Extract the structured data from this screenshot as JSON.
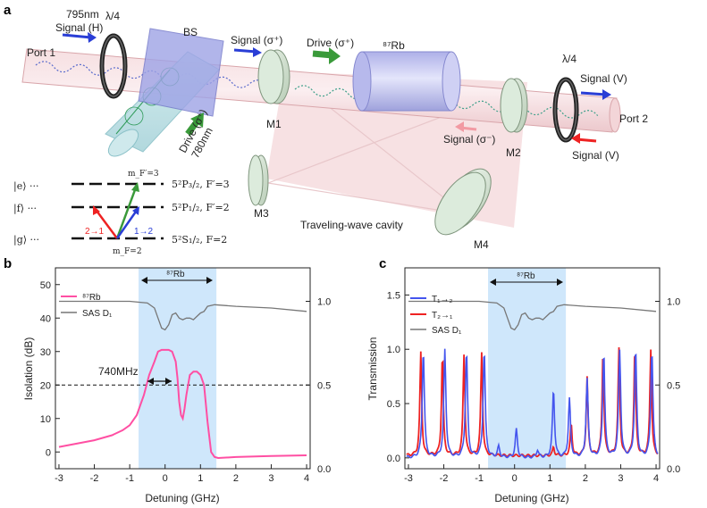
{
  "panel_a": {
    "label": "a",
    "wavelength_795": "795nm",
    "signal_h": "Signal (H)",
    "qwp_left": "λ/4",
    "qwp_right": "λ/4",
    "port1": "Port 1",
    "port2": "Port 2",
    "bs": "BS",
    "signal_sigma_plus": "Signal (σ⁺)",
    "drive_sigma_plus": "Drive (σ⁺)",
    "rb87": "⁸⁷Rb",
    "signal_v_top": "Signal (V)",
    "signal_v_bottom": "Signal (V)",
    "signal_sigma_minus": "Signal (σ⁻)",
    "drive_780_line1": "Drive (σ⁺)",
    "drive_780_line2": "780nm",
    "m1": "M1",
    "m2": "M2",
    "m3": "M3",
    "m4": "M4",
    "cavity": "Traveling-wave cavity",
    "level_e": "|e⟩ ···",
    "level_f": "|f⟩ ···",
    "level_g": "|g⟩ ···",
    "term_e": "5²P₃/₂, F′=3",
    "term_f": "5²P₁/₂, F′=2",
    "term_g": "5²S₁/₂, F=2",
    "mF_prime": "m_F′=3",
    "mF": "m_F=2",
    "trans_21": "2→1",
    "trans_12": "1→2",
    "colors": {
      "drive": "#3a9a3a",
      "signal": "#3344dd",
      "red": "#ee2222",
      "beam": "#e8b6bb",
      "cell": "#c3c3ee"
    }
  },
  "panel_b": {
    "label": "b",
    "ylabel": "Isolation (dB)",
    "xlabel": "Detuning (GHz)",
    "legend_rb": "⁸⁷Rb",
    "legend_sas": "SAS D₁",
    "rb_region_label": "⁸⁷Rb",
    "annotation": "740MHz",
    "x_ticks": [
      "-3",
      "-2",
      "-1",
      "0",
      "1",
      "2",
      "3",
      "4"
    ],
    "y_ticks_left": [
      "0",
      "10",
      "20",
      "30",
      "40",
      "50"
    ],
    "y_ticks_right": [
      "0.0",
      "0.5",
      "1.0"
    ]
  },
  "panel_c": {
    "label": "c",
    "ylabel": "Transmission",
    "xlabel": "Detuning (GHz)",
    "legend_t12": "T₁→₂",
    "legend_t21": "T₂→₁",
    "legend_sas": "SAS D₁",
    "rb_region_label": "⁸⁷Rb",
    "x_ticks": [
      "-3",
      "-2",
      "-1",
      "0",
      "1",
      "2",
      "3",
      "4"
    ],
    "y_ticks_left": [
      "0.0",
      "0.5",
      "1.0",
      "1.5"
    ],
    "y_ticks_right": [
      "0.0",
      "0.5",
      "1.0"
    ]
  },
  "chart_data": [
    {
      "type": "line",
      "panel": "b",
      "xlim": [
        -3.1,
        4.1
      ],
      "ylim": [
        -5,
        55
      ],
      "y2lim": [
        0,
        1.2
      ],
      "shaded_region": [
        -0.75,
        1.45
      ],
      "reference_line_y": 20,
      "series": [
        {
          "name": "⁸⁷Rb",
          "axis": "left",
          "color": "#ff4fa3",
          "x": [
            -3,
            -2.5,
            -2,
            -1.5,
            -1.2,
            -1,
            -0.8,
            -0.6,
            -0.45,
            -0.3,
            -0.2,
            -0.1,
            0,
            0.1,
            0.2,
            0.3,
            0.35,
            0.4,
            0.45,
            0.5,
            0.55,
            0.6,
            0.7,
            0.8,
            0.9,
            1,
            1.1,
            1.2,
            1.3,
            1.4,
            1.5,
            2,
            3,
            4
          ],
          "y": [
            1.5,
            2.5,
            3.5,
            5,
            6.5,
            8,
            11,
            17,
            23,
            27,
            30,
            30.5,
            30.5,
            30.5,
            30,
            27,
            22,
            15,
            11,
            10,
            13,
            17,
            23,
            24,
            24,
            23,
            20,
            9,
            0,
            -1.5,
            -1.8,
            -1.5,
            -1.2,
            -1
          ]
        },
        {
          "name": "SAS D₁",
          "axis": "right",
          "color": "#777777",
          "x": [
            -3,
            -2,
            -1,
            -0.5,
            -0.3,
            -0.2,
            -0.1,
            0,
            0.1,
            0.2,
            0.3,
            0.4,
            0.5,
            0.6,
            0.7,
            0.8,
            0.9,
            1,
            1.1,
            1.2,
            1.4,
            2,
            3,
            4
          ],
          "y": [
            1.0,
            1.0,
            1.0,
            0.99,
            0.96,
            0.9,
            0.84,
            0.83,
            0.86,
            0.92,
            0.93,
            0.9,
            0.89,
            0.9,
            0.9,
            0.89,
            0.91,
            0.93,
            0.94,
            0.97,
            0.98,
            0.97,
            0.96,
            0.94
          ]
        }
      ]
    },
    {
      "type": "line",
      "panel": "c",
      "xlim": [
        -3.1,
        4.1
      ],
      "ylim": [
        -0.1,
        1.75
      ],
      "y2lim": [
        0,
        1.2
      ],
      "shaded_region": [
        -0.75,
        1.45
      ],
      "series": [
        {
          "name": "T₁→₂",
          "axis": "left",
          "color": "#4455ee",
          "peaks": [
            [
              -2.58,
              1.0
            ],
            [
              -1.97,
              0.99
            ],
            [
              -1.36,
              0.99
            ],
            [
              -0.86,
              1.0
            ],
            [
              -0.45,
              0.1
            ],
            [
              0.05,
              0.26
            ],
            [
              0.65,
              0.07
            ],
            [
              1.1,
              0.63
            ],
            [
              1.55,
              0.54
            ],
            [
              2.05,
              0.72
            ],
            [
              2.52,
              0.98
            ],
            [
              2.97,
              0.98
            ],
            [
              3.42,
              1.0
            ],
            [
              3.88,
              1.0
            ]
          ]
        },
        {
          "name": "T₂→₁",
          "axis": "left",
          "color": "#ee2222",
          "peaks": [
            [
              -2.65,
              0.95
            ],
            [
              -2.04,
              0.95
            ],
            [
              -1.43,
              0.93
            ],
            [
              -0.93,
              0.95
            ],
            [
              1.1,
              0.08
            ],
            [
              1.6,
              0.3
            ],
            [
              2.05,
              0.72
            ],
            [
              2.5,
              0.98
            ],
            [
              2.95,
              0.98
            ],
            [
              3.4,
              1.0
            ],
            [
              3.85,
              0.98
            ]
          ]
        },
        {
          "name": "SAS D₁",
          "axis": "right",
          "color": "#777777",
          "x": [
            -3,
            -2,
            -1,
            -0.5,
            -0.3,
            -0.2,
            -0.1,
            0,
            0.1,
            0.2,
            0.3,
            0.4,
            0.5,
            0.6,
            0.7,
            0.8,
            0.9,
            1,
            1.1,
            1.2,
            1.4,
            2,
            3,
            4
          ],
          "y": [
            1.0,
            1.0,
            1.0,
            0.99,
            0.96,
            0.9,
            0.84,
            0.83,
            0.86,
            0.92,
            0.93,
            0.9,
            0.89,
            0.9,
            0.9,
            0.89,
            0.91,
            0.93,
            0.94,
            0.97,
            0.98,
            0.97,
            0.96,
            0.94
          ]
        }
      ]
    }
  ]
}
